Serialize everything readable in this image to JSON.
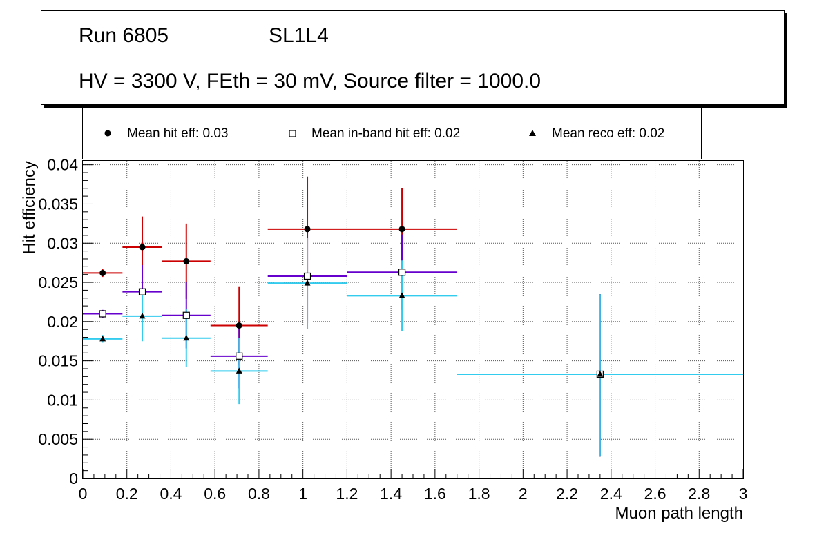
{
  "header": {
    "run": "Run 6805",
    "layer": "SL1L4",
    "conditions": "HV = 3300 V, FEth = 30 mV, Source filter = 1000.0"
  },
  "legend": [
    {
      "marker": "filled-circle",
      "label": "Mean hit  eff: 0.03"
    },
    {
      "marker": "open-square",
      "label": "Mean in-band hit eff: 0.02"
    },
    {
      "marker": "filled-triangle",
      "label": "Mean reco eff: 0.02"
    }
  ],
  "chart_data": {
    "type": "scatter",
    "xlabel": "Muon path length",
    "ylabel": "Hit efficiency",
    "xlim": [
      0,
      3
    ],
    "ylim": [
      0,
      0.0405
    ],
    "grid": true,
    "legend_position": "top",
    "xticks": [
      0,
      0.2,
      0.4,
      0.6,
      0.8,
      1,
      1.2,
      1.4,
      1.6,
      1.8,
      2,
      2.2,
      2.4,
      2.6,
      2.8,
      3
    ],
    "xtick_labels": [
      "0",
      "0.2",
      "0.4",
      "0.6",
      "0.8",
      "1",
      "1.2",
      "1.4",
      "1.6",
      "1.8",
      "2",
      "2.2",
      "2.4",
      "2.6",
      "2.8",
      "3"
    ],
    "yticks": [
      0,
      0.005,
      0.01,
      0.015,
      0.02,
      0.025,
      0.03,
      0.035,
      0.04
    ],
    "ytick_labels": [
      "0",
      "0.005",
      "0.01",
      "0.015",
      "0.02",
      "0.025",
      "0.03",
      "0.035",
      "0.04"
    ],
    "series": [
      {
        "name": "Mean hit  eff: 0.03",
        "marker": "filled-circle",
        "color": "#cc0000",
        "points": [
          {
            "x": 0.09,
            "xlo": 0.0,
            "xhi": 0.18,
            "y": 0.0262,
            "ylo": 0.0257,
            "yhi": 0.0267
          },
          {
            "x": 0.27,
            "xlo": 0.18,
            "xhi": 0.36,
            "y": 0.0295,
            "ylo": 0.0256,
            "yhi": 0.0334
          },
          {
            "x": 0.47,
            "xlo": 0.36,
            "xhi": 0.58,
            "y": 0.0277,
            "ylo": 0.0229,
            "yhi": 0.0325
          },
          {
            "x": 0.71,
            "xlo": 0.58,
            "xhi": 0.84,
            "y": 0.0195,
            "ylo": 0.0145,
            "yhi": 0.0245
          },
          {
            "x": 1.02,
            "xlo": 0.84,
            "xhi": 1.2,
            "y": 0.0318,
            "ylo": 0.0251,
            "yhi": 0.0385
          },
          {
            "x": 1.45,
            "xlo": 1.2,
            "xhi": 1.7,
            "y": 0.0318,
            "ylo": 0.0266,
            "yhi": 0.037
          },
          {
            "x": 2.35,
            "xlo": 1.7,
            "xhi": 3.0,
            "y": 0.0133,
            "ylo": 0.0028,
            "yhi": 0.0235
          }
        ]
      },
      {
        "name": "Mean in-band hit eff: 0.02",
        "marker": "open-square",
        "color": "#6600cc",
        "points": [
          {
            "x": 0.09,
            "xlo": 0.0,
            "xhi": 0.18,
            "y": 0.021,
            "ylo": 0.0205,
            "yhi": 0.0215
          },
          {
            "x": 0.27,
            "xlo": 0.18,
            "xhi": 0.36,
            "y": 0.0238,
            "ylo": 0.0204,
            "yhi": 0.0272
          },
          {
            "x": 0.47,
            "xlo": 0.36,
            "xhi": 0.58,
            "y": 0.0208,
            "ylo": 0.0166,
            "yhi": 0.025
          },
          {
            "x": 0.71,
            "xlo": 0.58,
            "xhi": 0.84,
            "y": 0.0156,
            "ylo": 0.0115,
            "yhi": 0.0197
          },
          {
            "x": 1.02,
            "xlo": 0.84,
            "xhi": 1.2,
            "y": 0.0258,
            "ylo": 0.0198,
            "yhi": 0.0318
          },
          {
            "x": 1.45,
            "xlo": 1.2,
            "xhi": 1.7,
            "y": 0.0263,
            "ylo": 0.0215,
            "yhi": 0.0311
          },
          {
            "x": 2.35,
            "xlo": 1.7,
            "xhi": 3.0,
            "y": 0.0133,
            "ylo": 0.0028,
            "yhi": 0.0235
          }
        ]
      },
      {
        "name": "Mean reco eff: 0.02",
        "marker": "filled-triangle",
        "color": "#33ccee",
        "points": [
          {
            "x": 0.09,
            "xlo": 0.0,
            "xhi": 0.18,
            "y": 0.0178,
            "ylo": 0.0173,
            "yhi": 0.0183
          },
          {
            "x": 0.27,
            "xlo": 0.18,
            "xhi": 0.36,
            "y": 0.0207,
            "ylo": 0.0175,
            "yhi": 0.0239
          },
          {
            "x": 0.47,
            "xlo": 0.36,
            "xhi": 0.58,
            "y": 0.0179,
            "ylo": 0.0142,
            "yhi": 0.0216
          },
          {
            "x": 0.71,
            "xlo": 0.58,
            "xhi": 0.84,
            "y": 0.0137,
            "ylo": 0.0095,
            "yhi": 0.0179
          },
          {
            "x": 1.02,
            "xlo": 0.84,
            "xhi": 1.2,
            "y": 0.0249,
            "ylo": 0.0191,
            "yhi": 0.0307
          },
          {
            "x": 1.45,
            "xlo": 1.2,
            "xhi": 1.7,
            "y": 0.0233,
            "ylo": 0.0188,
            "yhi": 0.0278
          },
          {
            "x": 2.35,
            "xlo": 1.7,
            "xhi": 3.0,
            "y": 0.0133,
            "ylo": 0.0028,
            "yhi": 0.0235
          }
        ]
      }
    ]
  }
}
